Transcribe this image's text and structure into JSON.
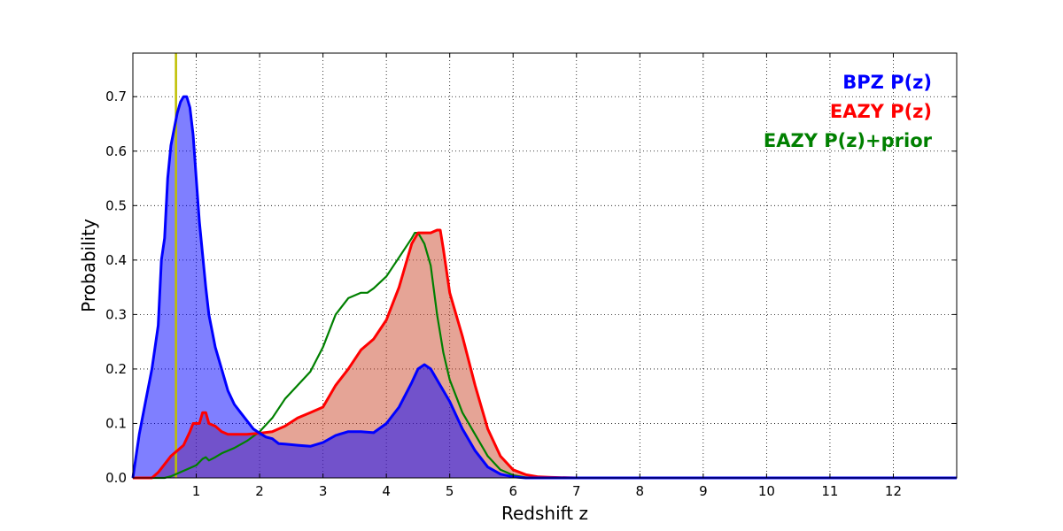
{
  "chart_data": {
    "type": "area",
    "xlabel": "Redshift z",
    "ylabel": "Probability",
    "xlim": [
      0,
      13
    ],
    "ylim": [
      0,
      0.78
    ],
    "xticks": [
      1,
      2,
      3,
      4,
      5,
      6,
      7,
      8,
      9,
      10,
      11,
      12
    ],
    "yticks": [
      0.0,
      0.1,
      0.2,
      0.3,
      0.4,
      0.5,
      0.6,
      0.7
    ],
    "grid": true,
    "legend_placement": "top-right",
    "vline": {
      "x": 0.68,
      "color": "#bfbf00"
    },
    "series": [
      {
        "name": "BPZ P(z)",
        "color": "#0000ff",
        "fill": true,
        "fill_color": "#0000ff",
        "x": [
          0.0,
          0.1,
          0.2,
          0.3,
          0.4,
          0.45,
          0.5,
          0.55,
          0.6,
          0.65,
          0.7,
          0.75,
          0.8,
          0.85,
          0.9,
          0.95,
          1.0,
          1.05,
          1.1,
          1.15,
          1.2,
          1.25,
          1.3,
          1.4,
          1.5,
          1.6,
          1.7,
          1.8,
          1.9,
          2.0,
          2.1,
          2.2,
          2.3,
          2.4,
          2.6,
          2.8,
          3.0,
          3.2,
          3.4,
          3.6,
          3.8,
          4.0,
          4.2,
          4.4,
          4.5,
          4.6,
          4.7,
          4.8,
          5.0,
          5.2,
          5.4,
          5.6,
          5.8,
          6.0,
          6.2,
          6.5,
          7.0,
          8.0,
          10.0,
          12.0,
          13.0
        ],
        "values": [
          0.0,
          0.08,
          0.14,
          0.2,
          0.28,
          0.4,
          0.44,
          0.55,
          0.61,
          0.64,
          0.67,
          0.69,
          0.7,
          0.7,
          0.68,
          0.63,
          0.55,
          0.47,
          0.41,
          0.35,
          0.3,
          0.27,
          0.24,
          0.2,
          0.16,
          0.135,
          0.12,
          0.105,
          0.09,
          0.082,
          0.075,
          0.072,
          0.063,
          0.062,
          0.06,
          0.058,
          0.065,
          0.078,
          0.085,
          0.085,
          0.083,
          0.1,
          0.13,
          0.175,
          0.2,
          0.208,
          0.2,
          0.18,
          0.14,
          0.09,
          0.05,
          0.02,
          0.007,
          0.002,
          0.0,
          0.0,
          0.0,
          0.0,
          0.0,
          0.0,
          0.0
        ]
      },
      {
        "name": "EAZY P(z)",
        "color": "#ff0000",
        "fill": true,
        "fill_color": "#cc4a2e",
        "x": [
          0.0,
          0.3,
          0.4,
          0.5,
          0.6,
          0.7,
          0.8,
          0.9,
          0.95,
          1.0,
          1.05,
          1.1,
          1.15,
          1.2,
          1.3,
          1.4,
          1.5,
          1.6,
          1.8,
          2.0,
          2.2,
          2.4,
          2.6,
          2.8,
          3.0,
          3.2,
          3.4,
          3.6,
          3.8,
          4.0,
          4.1,
          4.2,
          4.3,
          4.4,
          4.5,
          4.6,
          4.7,
          4.8,
          4.85,
          4.9,
          5.0,
          5.2,
          5.4,
          5.6,
          5.8,
          6.0,
          6.2,
          6.4,
          6.6,
          7.0,
          8.0,
          10.0,
          13.0
        ],
        "values": [
          0.0,
          0.0,
          0.01,
          0.025,
          0.04,
          0.05,
          0.06,
          0.085,
          0.1,
          0.1,
          0.1,
          0.12,
          0.12,
          0.1,
          0.095,
          0.085,
          0.08,
          0.08,
          0.08,
          0.082,
          0.085,
          0.095,
          0.11,
          0.12,
          0.13,
          0.17,
          0.2,
          0.235,
          0.255,
          0.29,
          0.32,
          0.35,
          0.39,
          0.43,
          0.45,
          0.45,
          0.45,
          0.455,
          0.455,
          0.42,
          0.34,
          0.26,
          0.17,
          0.09,
          0.04,
          0.015,
          0.006,
          0.002,
          0.001,
          0.0,
          0.0,
          0.0,
          0.0
        ]
      },
      {
        "name": "EAZY P(z)+prior",
        "color": "#008000",
        "fill": false,
        "x": [
          0.0,
          0.5,
          0.6,
          0.7,
          0.8,
          0.9,
          1.0,
          1.1,
          1.15,
          1.2,
          1.3,
          1.4,
          1.5,
          1.6,
          1.8,
          2.0,
          2.2,
          2.4,
          2.6,
          2.8,
          3.0,
          3.2,
          3.4,
          3.6,
          3.7,
          3.8,
          4.0,
          4.2,
          4.4,
          4.45,
          4.5,
          4.55,
          4.6,
          4.7,
          4.8,
          4.9,
          5.0,
          5.2,
          5.4,
          5.6,
          5.8,
          6.0,
          6.2,
          6.5,
          7.0,
          8.0,
          10.0,
          13.0
        ],
        "values": [
          0.0,
          0.0,
          0.003,
          0.008,
          0.013,
          0.018,
          0.023,
          0.035,
          0.038,
          0.032,
          0.038,
          0.045,
          0.05,
          0.055,
          0.068,
          0.085,
          0.11,
          0.145,
          0.17,
          0.195,
          0.24,
          0.3,
          0.33,
          0.34,
          0.34,
          0.348,
          0.37,
          0.405,
          0.44,
          0.45,
          0.45,
          0.44,
          0.43,
          0.39,
          0.3,
          0.23,
          0.18,
          0.12,
          0.08,
          0.04,
          0.015,
          0.005,
          0.001,
          0.0,
          0.0,
          0.0,
          0.0,
          0.0
        ]
      }
    ]
  }
}
